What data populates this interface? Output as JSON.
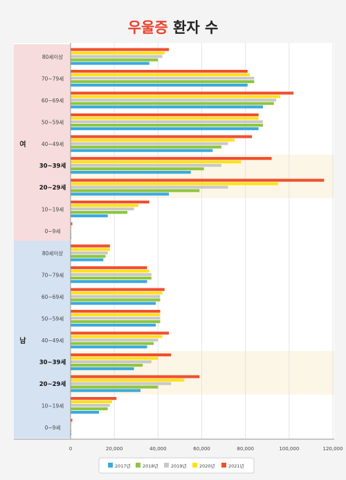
{
  "title": {
    "highlight": "우울증",
    "rest": " 환자 수"
  },
  "chart_data": {
    "type": "bar",
    "orientation": "horizontal",
    "title": "우울증 환자 수",
    "xlim": [
      0,
      120000
    ],
    "x_ticks": [
      0,
      20000,
      40000,
      60000,
      80000,
      100000,
      120000
    ],
    "x_tick_labels": [
      "0",
      "20,000",
      "40,000",
      "60,000",
      "80,000",
      "100,000",
      "120,000"
    ],
    "grid": true,
    "legend_position": "bottom",
    "series_names": [
      "2017년",
      "2018년",
      "2019년",
      "2020년",
      "2021년"
    ],
    "series_colors": [
      "#3ba9df",
      "#8dc63f",
      "#c8c8c8",
      "#ffe11a",
      "#f0502d"
    ],
    "groups": [
      {
        "name": "여",
        "color": "#f6dcdc",
        "categories": [
          "80세이상",
          "70~79세",
          "60~69세",
          "50~59세",
          "40~49세",
          "30~39세",
          "20~29세",
          "10~19세",
          "0~9세"
        ],
        "highlight": [
          "30~39세",
          "20~29세"
        ],
        "values": [
          [
            36000,
            40000,
            42000,
            43000,
            45000
          ],
          [
            81000,
            84000,
            84000,
            82000,
            81000
          ],
          [
            88000,
            93000,
            94000,
            96000,
            102000
          ],
          [
            86000,
            88000,
            88000,
            86000,
            86000
          ],
          [
            65000,
            69000,
            72000,
            75000,
            83000
          ],
          [
            55000,
            61000,
            69000,
            78000,
            92000
          ],
          [
            45000,
            59000,
            72000,
            95000,
            116000
          ],
          [
            17000,
            26000,
            29000,
            31000,
            36000
          ],
          [
            200,
            300,
            300,
            400,
            800
          ]
        ]
      },
      {
        "name": "남",
        "color": "#d4e2f2",
        "categories": [
          "80세이상",
          "70~79세",
          "60~69세",
          "50~59세",
          "40~49세",
          "30~39세",
          "20~29세",
          "10~19세",
          "0~9세"
        ],
        "highlight": [
          "30~39세",
          "20~29세"
        ],
        "values": [
          [
            15000,
            16000,
            17000,
            18000,
            18000
          ],
          [
            35000,
            37000,
            37000,
            36000,
            35000
          ],
          [
            39000,
            41000,
            41000,
            42000,
            43000
          ],
          [
            39000,
            41000,
            41000,
            41000,
            41000
          ],
          [
            35000,
            38000,
            40000,
            42000,
            45000
          ],
          [
            29000,
            33000,
            37000,
            40000,
            46000
          ],
          [
            32000,
            40000,
            46000,
            52000,
            59000
          ],
          [
            13000,
            17000,
            18000,
            19000,
            21000
          ],
          [
            200,
            300,
            300,
            400,
            800
          ]
        ]
      }
    ]
  }
}
